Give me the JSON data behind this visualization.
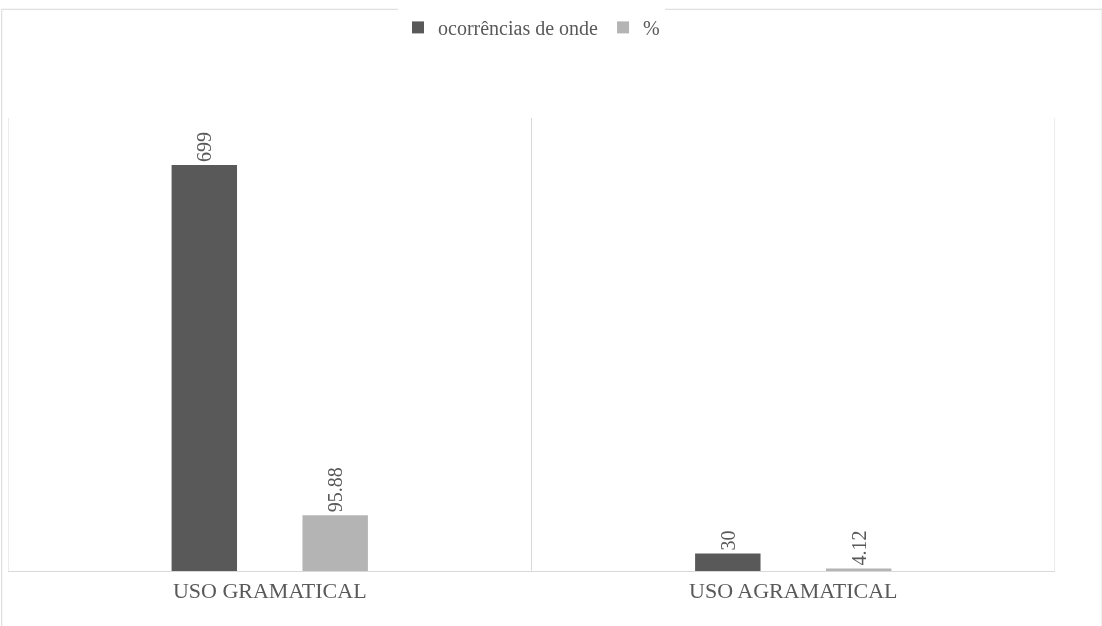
{
  "chart_data": {
    "type": "bar",
    "categories": [
      "USO GRAMATICAL",
      "USO AGRAMATICAL"
    ],
    "series": [
      {
        "name": "ocorrências de onde",
        "color": "#595959",
        "values": [
          699,
          30
        ]
      },
      {
        "name": "%",
        "color": "#b4b4b4",
        "values": [
          95.88,
          4.12
        ]
      }
    ],
    "ylim": [
      0,
      780
    ],
    "data_labels": true,
    "grid": "x",
    "legend": "top",
    "tick_labels": "x"
  }
}
